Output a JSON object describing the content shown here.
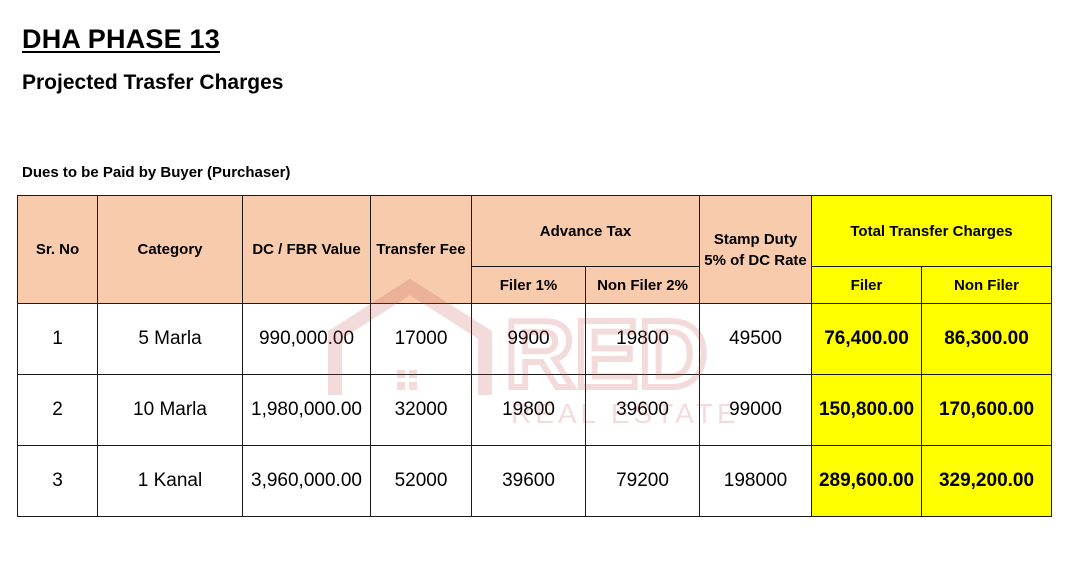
{
  "page": {
    "title": "DHA PHASE 13",
    "subtitle": "Projected Trasfer Charges",
    "caption": "Dues to be Paid by Buyer (Purchaser)"
  },
  "watermark": {
    "text": "RED",
    "subtext": "REAL ESTATE",
    "color": "#c0504d"
  },
  "colors": {
    "header_fill": "#f8cbad",
    "highlight_fill": "#ffff00"
  },
  "table": {
    "headers": {
      "sr_no": "Sr. No",
      "category": "Category",
      "dc_value": "DC / FBR Value",
      "transfer_fee": "Transfer Fee",
      "advance_tax": "Advance Tax",
      "filer_1": "Filer 1%",
      "non_filer_2": "Non Filer 2%",
      "stamp_duty_line1": "Stamp Duty",
      "stamp_duty_line2": "5% of DC Rate",
      "total": "Total Transfer Charges",
      "total_filer": "Filer",
      "total_non_filer": "Non Filer"
    },
    "rows": [
      {
        "sr": "1",
        "category": "5 Marla",
        "dc": "990,000.00",
        "fee": "17000",
        "filer": "9900",
        "non_filer": "19800",
        "stamp": "49500",
        "total_filer": "76,400.00",
        "total_non_filer": "86,300.00"
      },
      {
        "sr": "2",
        "category": "10 Marla",
        "dc": "1,980,000.00",
        "fee": "32000",
        "filer": "19800",
        "non_filer": "39600",
        "stamp": "99000",
        "total_filer": "150,800.00",
        "total_non_filer": "170,600.00"
      },
      {
        "sr": "3",
        "category": "1 Kanal",
        "dc": "3,960,000.00",
        "fee": "52000",
        "filer": "39600",
        "non_filer": "79200",
        "stamp": "198000",
        "total_filer": "289,600.00",
        "total_non_filer": "329,200.00"
      }
    ]
  }
}
